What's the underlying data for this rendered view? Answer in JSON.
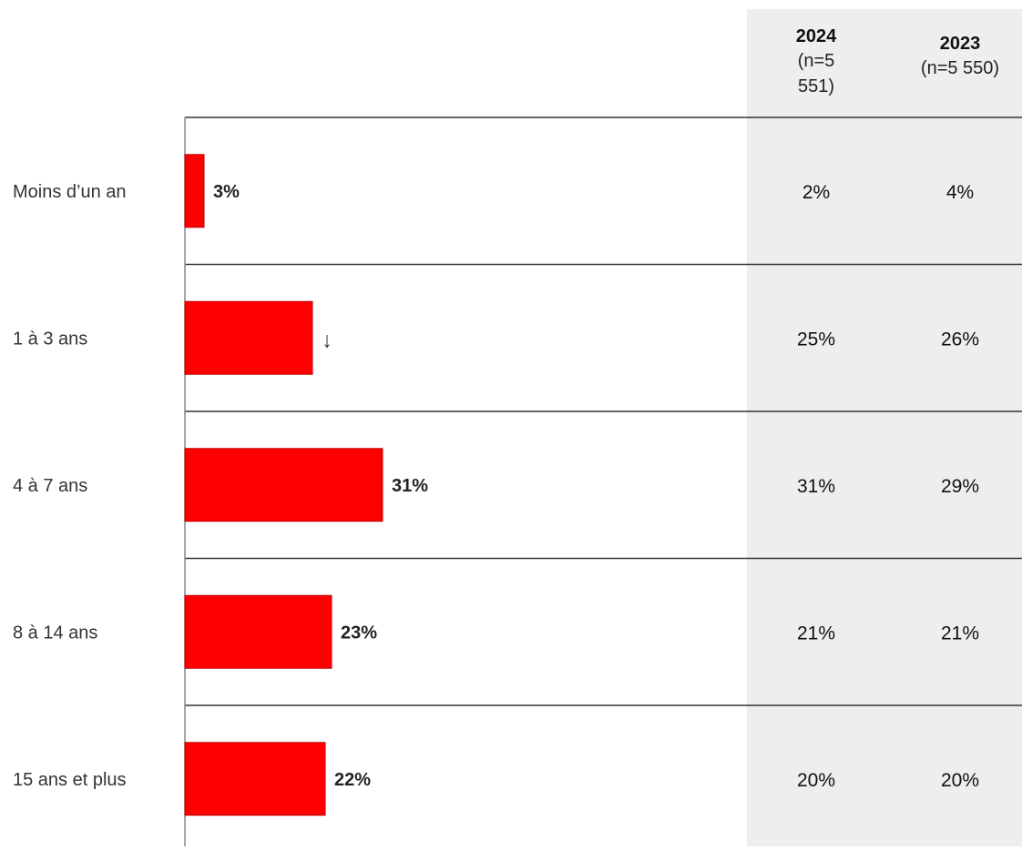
{
  "chart_data": {
    "type": "bar",
    "orientation": "horizontal",
    "categories": [
      "Moins d’un an",
      "1 à 3 ans",
      "4 à 7 ans",
      "8 à 14 ans",
      "15 ans et plus"
    ],
    "values": [
      3,
      20,
      31,
      23,
      22
    ],
    "value_labels": [
      "3%",
      "↓",
      "31%",
      "23%",
      "22%"
    ],
    "unit": "%",
    "bar_color": "#ff0000",
    "comparison_table": {
      "headers": [
        {
          "year": "2024",
          "n_lines": [
            "(n=5",
            "551)"
          ]
        },
        {
          "year": "2023",
          "n_lines": [
            "(n=5 550)"
          ]
        }
      ],
      "rows": [
        [
          "2%",
          "4%"
        ],
        [
          "25%",
          "26%"
        ],
        [
          "31%",
          "29%"
        ],
        [
          "21%",
          "21%"
        ],
        [
          "20%",
          "20%"
        ]
      ],
      "background": "#eeeeee"
    }
  }
}
